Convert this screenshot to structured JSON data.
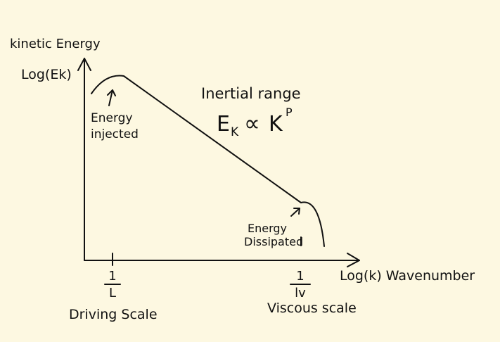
{
  "y_axis": {
    "title": "kinetic Energy",
    "label": "Log(Ek)"
  },
  "x_axis": {
    "label": "Log(k) Wavenumber"
  },
  "annotations": {
    "inertial_range": "Inertial range",
    "energy_injected_line1": "Energy",
    "energy_injected_line2": "injected",
    "energy_dissipated_line1": "Energy",
    "energy_dissipated_line2": "Dissipated"
  },
  "formula": {
    "lhs": "E",
    "lhs_subscript": "K",
    "relation": "∝",
    "rhs": "K",
    "rhs_superscript": "P"
  },
  "ticks": {
    "driving_numerator": "1",
    "driving_denominator": "L",
    "driving_label": "Driving Scale",
    "viscous_numerator": "1",
    "viscous_denominator": "lv",
    "viscous_label": "Viscous scale"
  }
}
